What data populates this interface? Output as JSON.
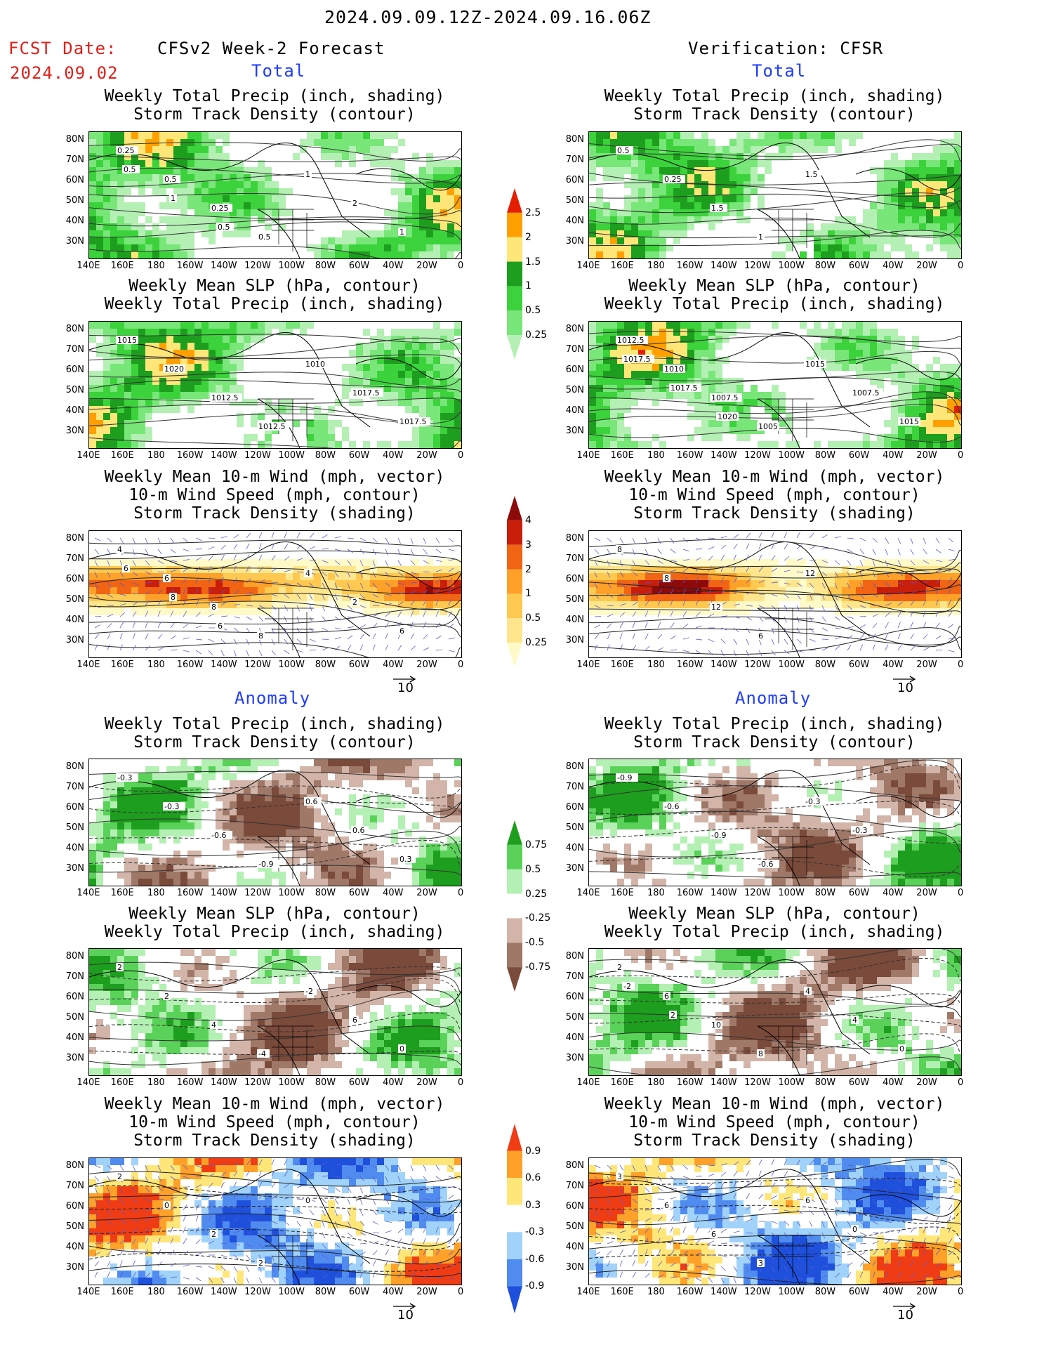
{
  "header": {
    "date_range": "2024.09.09.12Z-2024.09.16.06Z",
    "fcst_label": "FCST Date:",
    "fcst_date": "2024.09.02",
    "left_title": "CFSv2 Week-2 Forecast",
    "right_title": "Verification: CFSR",
    "total_label": "Total",
    "anomaly_label": "Anomaly"
  },
  "titles": {
    "precip_track": [
      "Weekly Total Precip (inch, shading)",
      "Storm Track Density (contour)"
    ],
    "slp_precip": [
      "Weekly Mean SLP (hPa, contour)",
      "Weekly Total Precip (inch, shading)"
    ],
    "wind_track": [
      "Weekly Mean 10-m Wind (mph, vector)",
      "10-m Wind Speed (mph, contour)",
      "Storm Track Density (shading)"
    ]
  },
  "axes": {
    "lat_labels": [
      "80N",
      "70N",
      "60N",
      "50N",
      "40N",
      "30N"
    ],
    "lon_labels": [
      "140E",
      "160E",
      "180",
      "160W",
      "140W",
      "120W",
      "100W",
      "80W",
      "60W",
      "40W",
      "20W",
      "0"
    ]
  },
  "vector_ref": "10",
  "colorbars": {
    "precip_total": {
      "labels": [
        "0.25",
        "0.5",
        "1",
        "1.5",
        "2",
        "2.5"
      ],
      "colors": [
        "#b4f0b4",
        "#78e678",
        "#3cd23c",
        "#1e9e1e",
        "#ffe678",
        "#ffa000",
        "#e61e00"
      ]
    },
    "track_total": {
      "labels": [
        "0.25",
        "0.5",
        "1",
        "2",
        "3",
        "4"
      ],
      "colors": [
        "#fffac8",
        "#ffe68c",
        "#ffc850",
        "#ffa028",
        "#f06414",
        "#c81e0a",
        "#8c0a0a"
      ]
    },
    "precip_anom": {
      "labels": [
        "-0.75",
        "-0.5",
        "-0.25",
        "0.25",
        "0.5",
        "0.75"
      ],
      "colors": [
        "#7a4a3a",
        "#a07868",
        "#d2b4a8",
        "#ffffff",
        "#b4f0b4",
        "#5ad25a",
        "#1e9e1e"
      ]
    },
    "track_anom": {
      "labels": [
        "-0.9",
        "-0.6",
        "-0.3",
        "0.3",
        "0.6",
        "0.9"
      ],
      "colors": [
        "#1e50dc",
        "#508cf0",
        "#a0d2fa",
        "#ffffff",
        "#ffe678",
        "#ffa028",
        "#f03c14"
      ]
    }
  },
  "contour_labels": {
    "fc_precip_total": [
      "0.25",
      "0.5",
      "0.25",
      "0.5",
      "1",
      "2",
      "1",
      "0.5",
      "1",
      "0.5"
    ],
    "vf_precip_total": [
      "0.5",
      "0.25",
      "1.5",
      "1",
      "1.5"
    ],
    "fc_slp_total": [
      "1015",
      "1020",
      "1012.5",
      "1012.5",
      "1010",
      "1017.5",
      "1017.5"
    ],
    "vf_slp_total": [
      "1012.5",
      "1010",
      "1007.5",
      "1005",
      "1015",
      "1007.5",
      "1015",
      "1017.5",
      "1017.5",
      "1020"
    ],
    "fc_wind_total": [
      "4",
      "6",
      "8",
      "8",
      "4",
      "2",
      "6",
      "6",
      "8",
      "6"
    ],
    "vf_wind_total": [
      "8",
      "8",
      "12",
      "6",
      "12"
    ],
    "fc_precip_anom": [
      "-0.3",
      "-0.3",
      "-0.6",
      "-0.9",
      "0.6",
      "0.6",
      "0.3"
    ],
    "vf_precip_anom": [
      "-0.9",
      "-0.6",
      "-0.9",
      "-0.6",
      "-0.3",
      "-0.3"
    ],
    "fc_slp_anom": [
      "2",
      "2",
      "4",
      "-4",
      "-2",
      "6",
      "0"
    ],
    "vf_slp_anom": [
      "2",
      "6",
      "10",
      "8",
      "4",
      "4",
      "0",
      "-2",
      "2"
    ],
    "fc_wind_anom": [
      "2",
      "0",
      "2",
      "2",
      "0"
    ],
    "vf_wind_anom": [
      "3",
      "6",
      "6",
      "3",
      "6",
      "0"
    ]
  }
}
